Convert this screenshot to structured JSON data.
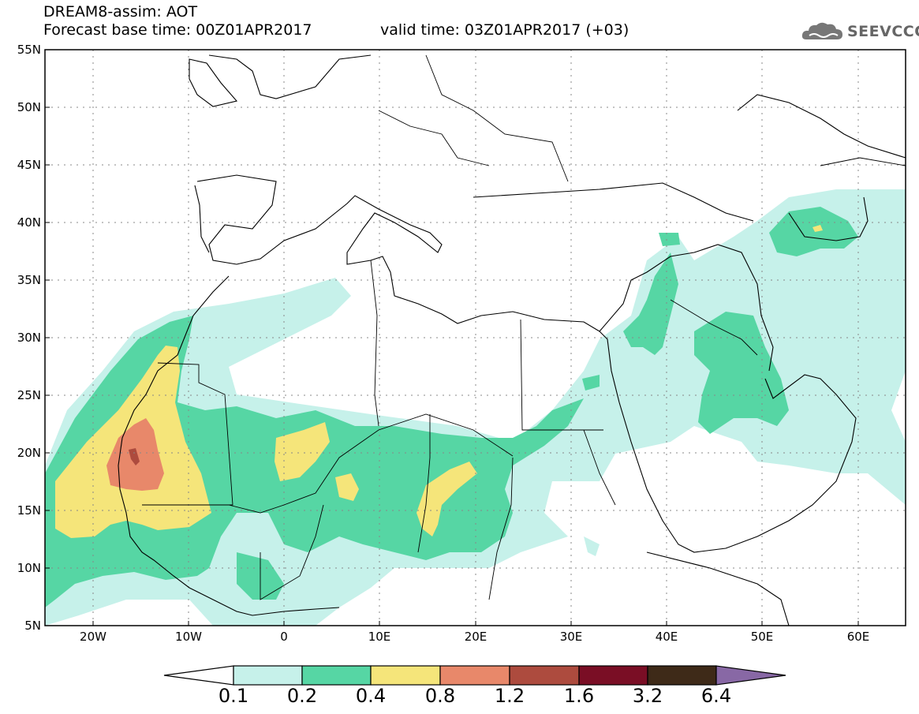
{
  "header": {
    "title": "DREAM8-assim: AOT",
    "base_time": "Forecast base time: 00Z01APR2017",
    "valid_time": "valid time: 03Z01APR2017 (+03)",
    "logo_text": "SEEVCCC"
  },
  "map": {
    "lat_labels": [
      "55N",
      "50N",
      "45N",
      "40N",
      "35N",
      "30N",
      "25N",
      "20N",
      "15N",
      "10N",
      "5N"
    ],
    "lon_labels": [
      "20W",
      "10W",
      "0",
      "10E",
      "20E",
      "30E",
      "40E",
      "50E",
      "60E"
    ],
    "lat_range": [
      5,
      55
    ],
    "lon_range": [
      -25,
      65
    ]
  },
  "colorbar": {
    "levels": [
      "0.1",
      "0.2",
      "0.4",
      "0.8",
      "1.2",
      "1.6",
      "3.2",
      "6.4"
    ],
    "colors": [
      "#ffffff",
      "#c6f1ea",
      "#56d6a4",
      "#f5e57a",
      "#e8886a",
      "#ad4b3e",
      "#7a0e25",
      "#3e2a18",
      "#8868a5"
    ]
  }
}
